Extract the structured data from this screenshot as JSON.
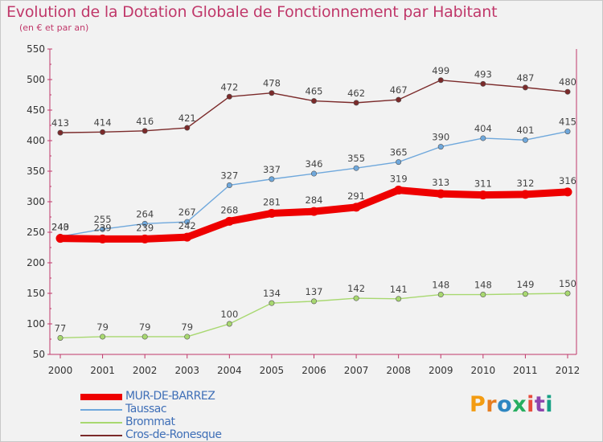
{
  "header": {
    "title": "Evolution de la Dotation Globale de Fonctionnement par Habitant",
    "subtitle": "(en € et par an)"
  },
  "logo": {
    "text": "Proxiti",
    "letters": [
      {
        "char": "P",
        "color": "#f39c12"
      },
      {
        "char": "r",
        "color": "#e67e22"
      },
      {
        "char": "o",
        "color": "#2e86c1"
      },
      {
        "char": "x",
        "color": "#27ae60"
      },
      {
        "char": "i",
        "color": "#e74c3c"
      },
      {
        "char": "t",
        "color": "#8e44ad"
      },
      {
        "char": "i",
        "color": "#16a085"
      }
    ]
  },
  "chart_data": {
    "type": "line",
    "title": "Evolution de la Dotation Globale de Fonctionnement par Habitant",
    "subtitle": "(en € et par an)",
    "x": [
      "2000",
      "2001",
      "2002",
      "2003",
      "2004",
      "2005",
      "2006",
      "2007",
      "2008",
      "2009",
      "2010",
      "2011",
      "2012"
    ],
    "ylim": [
      50,
      550
    ],
    "yticks": [
      50,
      100,
      150,
      200,
      250,
      300,
      350,
      400,
      450,
      500,
      550
    ],
    "grid": false,
    "legend_position": "bottom-left",
    "series": [
      {
        "name": "MUR-DE-BARREZ",
        "color": "#ee0000",
        "values": [
          240,
          239,
          239,
          242,
          268,
          281,
          284,
          291,
          319,
          313,
          311,
          312,
          316
        ]
      },
      {
        "name": "Taussac",
        "color": "#6fa8dc",
        "values": [
          243,
          255,
          264,
          267,
          327,
          337,
          346,
          355,
          365,
          390,
          404,
          401,
          415
        ]
      },
      {
        "name": "Brommat",
        "color": "#a8d870",
        "values": [
          77,
          79,
          79,
          79,
          100,
          134,
          137,
          142,
          141,
          148,
          148,
          149,
          150
        ]
      },
      {
        "name": "Cros-de-Ronesque",
        "color": "#7b2a2a",
        "values": [
          413,
          414,
          416,
          421,
          472,
          478,
          465,
          462,
          467,
          499,
          493,
          487,
          480
        ]
      }
    ]
  }
}
